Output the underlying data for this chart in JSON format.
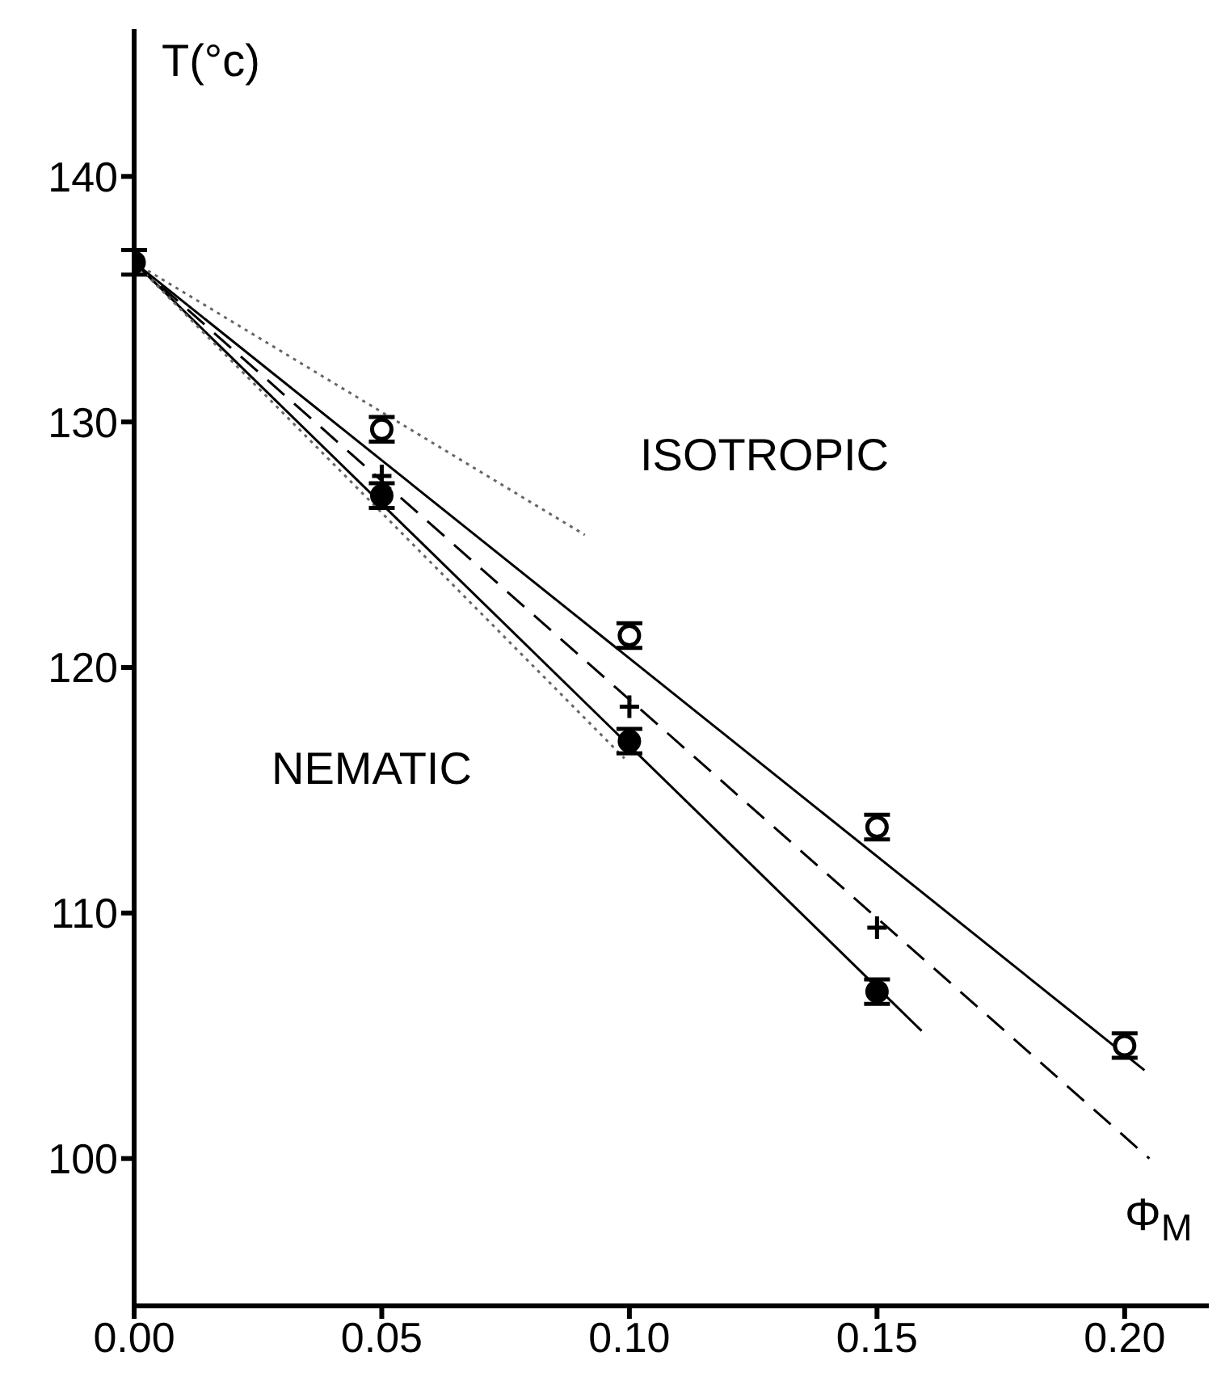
{
  "chart_data": {
    "type": "scatter",
    "xlabel": "Φ$_{M}$",
    "ylabel": "T(°c)",
    "annotations": [
      "ISOTROPIC",
      "NEMATIC"
    ],
    "xlim": [
      0,
      0.217
    ],
    "ylim": [
      94,
      146
    ],
    "xticks": [
      {
        "value": 0,
        "label": "0.00"
      },
      {
        "value": 0.05,
        "label": "0.05"
      },
      {
        "value": 0.1,
        "label": "0.10"
      },
      {
        "value": 0.15,
        "label": "0.15"
      },
      {
        "value": 0.2,
        "label": "0.20"
      }
    ],
    "yticks": [
      100,
      110,
      120,
      130,
      140
    ],
    "series": [
      {
        "type": "line",
        "color": "#000000",
        "line_style": "solid",
        "x": [
          0,
          0.204
        ],
        "values": [
          136.5,
          103.6
        ]
      },
      {
        "type": "line",
        "color": "#000000",
        "line_style": "dashed",
        "x": [
          0,
          0.205
        ],
        "values": [
          136.5,
          100.0
        ]
      },
      {
        "type": "line",
        "color": "#000000",
        "line_style": "solid",
        "x": [
          0,
          0.159
        ],
        "values": [
          136.5,
          105.2
        ]
      },
      {
        "type": "line",
        "color": "#666666",
        "line_style": "dotted",
        "x": [
          0,
          0.091
        ],
        "values": [
          136.5,
          125.4
        ]
      },
      {
        "type": "line",
        "color": "#666666",
        "line_style": "dotted",
        "x": [
          0,
          0.099
        ],
        "values": [
          136.5,
          116.3
        ]
      },
      {
        "color": "#ffffff",
        "marker": "circle",
        "x": [
          0.05,
          0.1,
          0.15,
          0.2
        ],
        "values": [
          129.7,
          121.3,
          113.5,
          104.6
        ],
        "errors": [
          0.5,
          0.5,
          0.5,
          0.5
        ]
      },
      {
        "color": "#000000",
        "marker": "cross",
        "x": [
          0.05,
          0.1,
          0.15
        ],
        "values": [
          127.8,
          118.4,
          109.4
        ]
      },
      {
        "color": "#000000",
        "marker": "circle",
        "x": [
          0,
          0.05,
          0.1,
          0.15
        ],
        "values": [
          136.5,
          127.0,
          117.0,
          106.8
        ],
        "errors": [
          0.5,
          0.5,
          0.5,
          0.5
        ]
      }
    ]
  }
}
